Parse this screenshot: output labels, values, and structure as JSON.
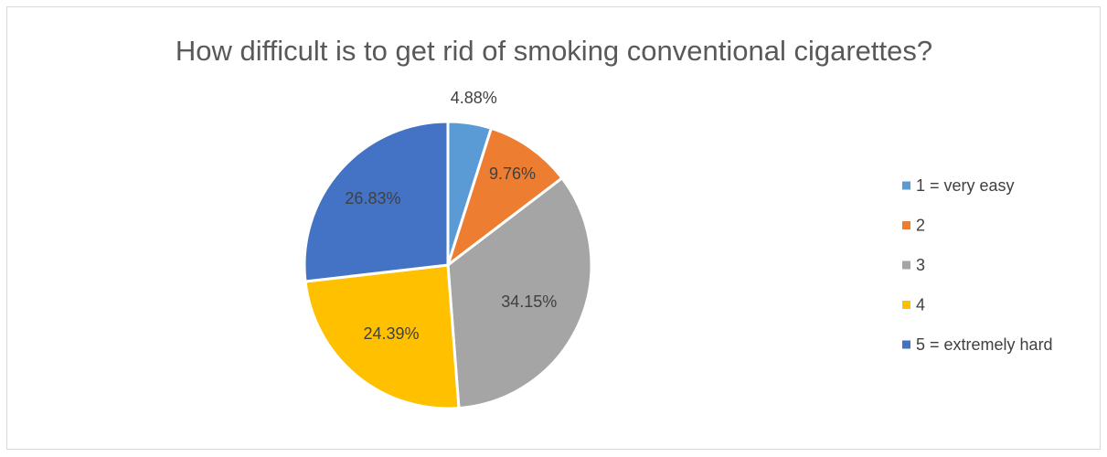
{
  "chart_data": {
    "type": "pie",
    "title": "How difficult is to get rid of smoking conventional cigarettes?",
    "categories": [
      "1 = very easy",
      "2",
      "3",
      "4",
      "5 = extremely hard"
    ],
    "values": [
      4.88,
      9.76,
      34.15,
      24.39,
      26.83
    ],
    "data_labels": [
      "4.88%",
      "9.76%",
      "34.15%",
      "24.39%",
      "26.83%"
    ],
    "colors": [
      "#5b9bd5",
      "#ed7d31",
      "#a5a5a5",
      "#ffc000",
      "#4472c4"
    ],
    "legend_position": "right",
    "start_angle": "12 o'clock",
    "direction": "clockwise"
  }
}
